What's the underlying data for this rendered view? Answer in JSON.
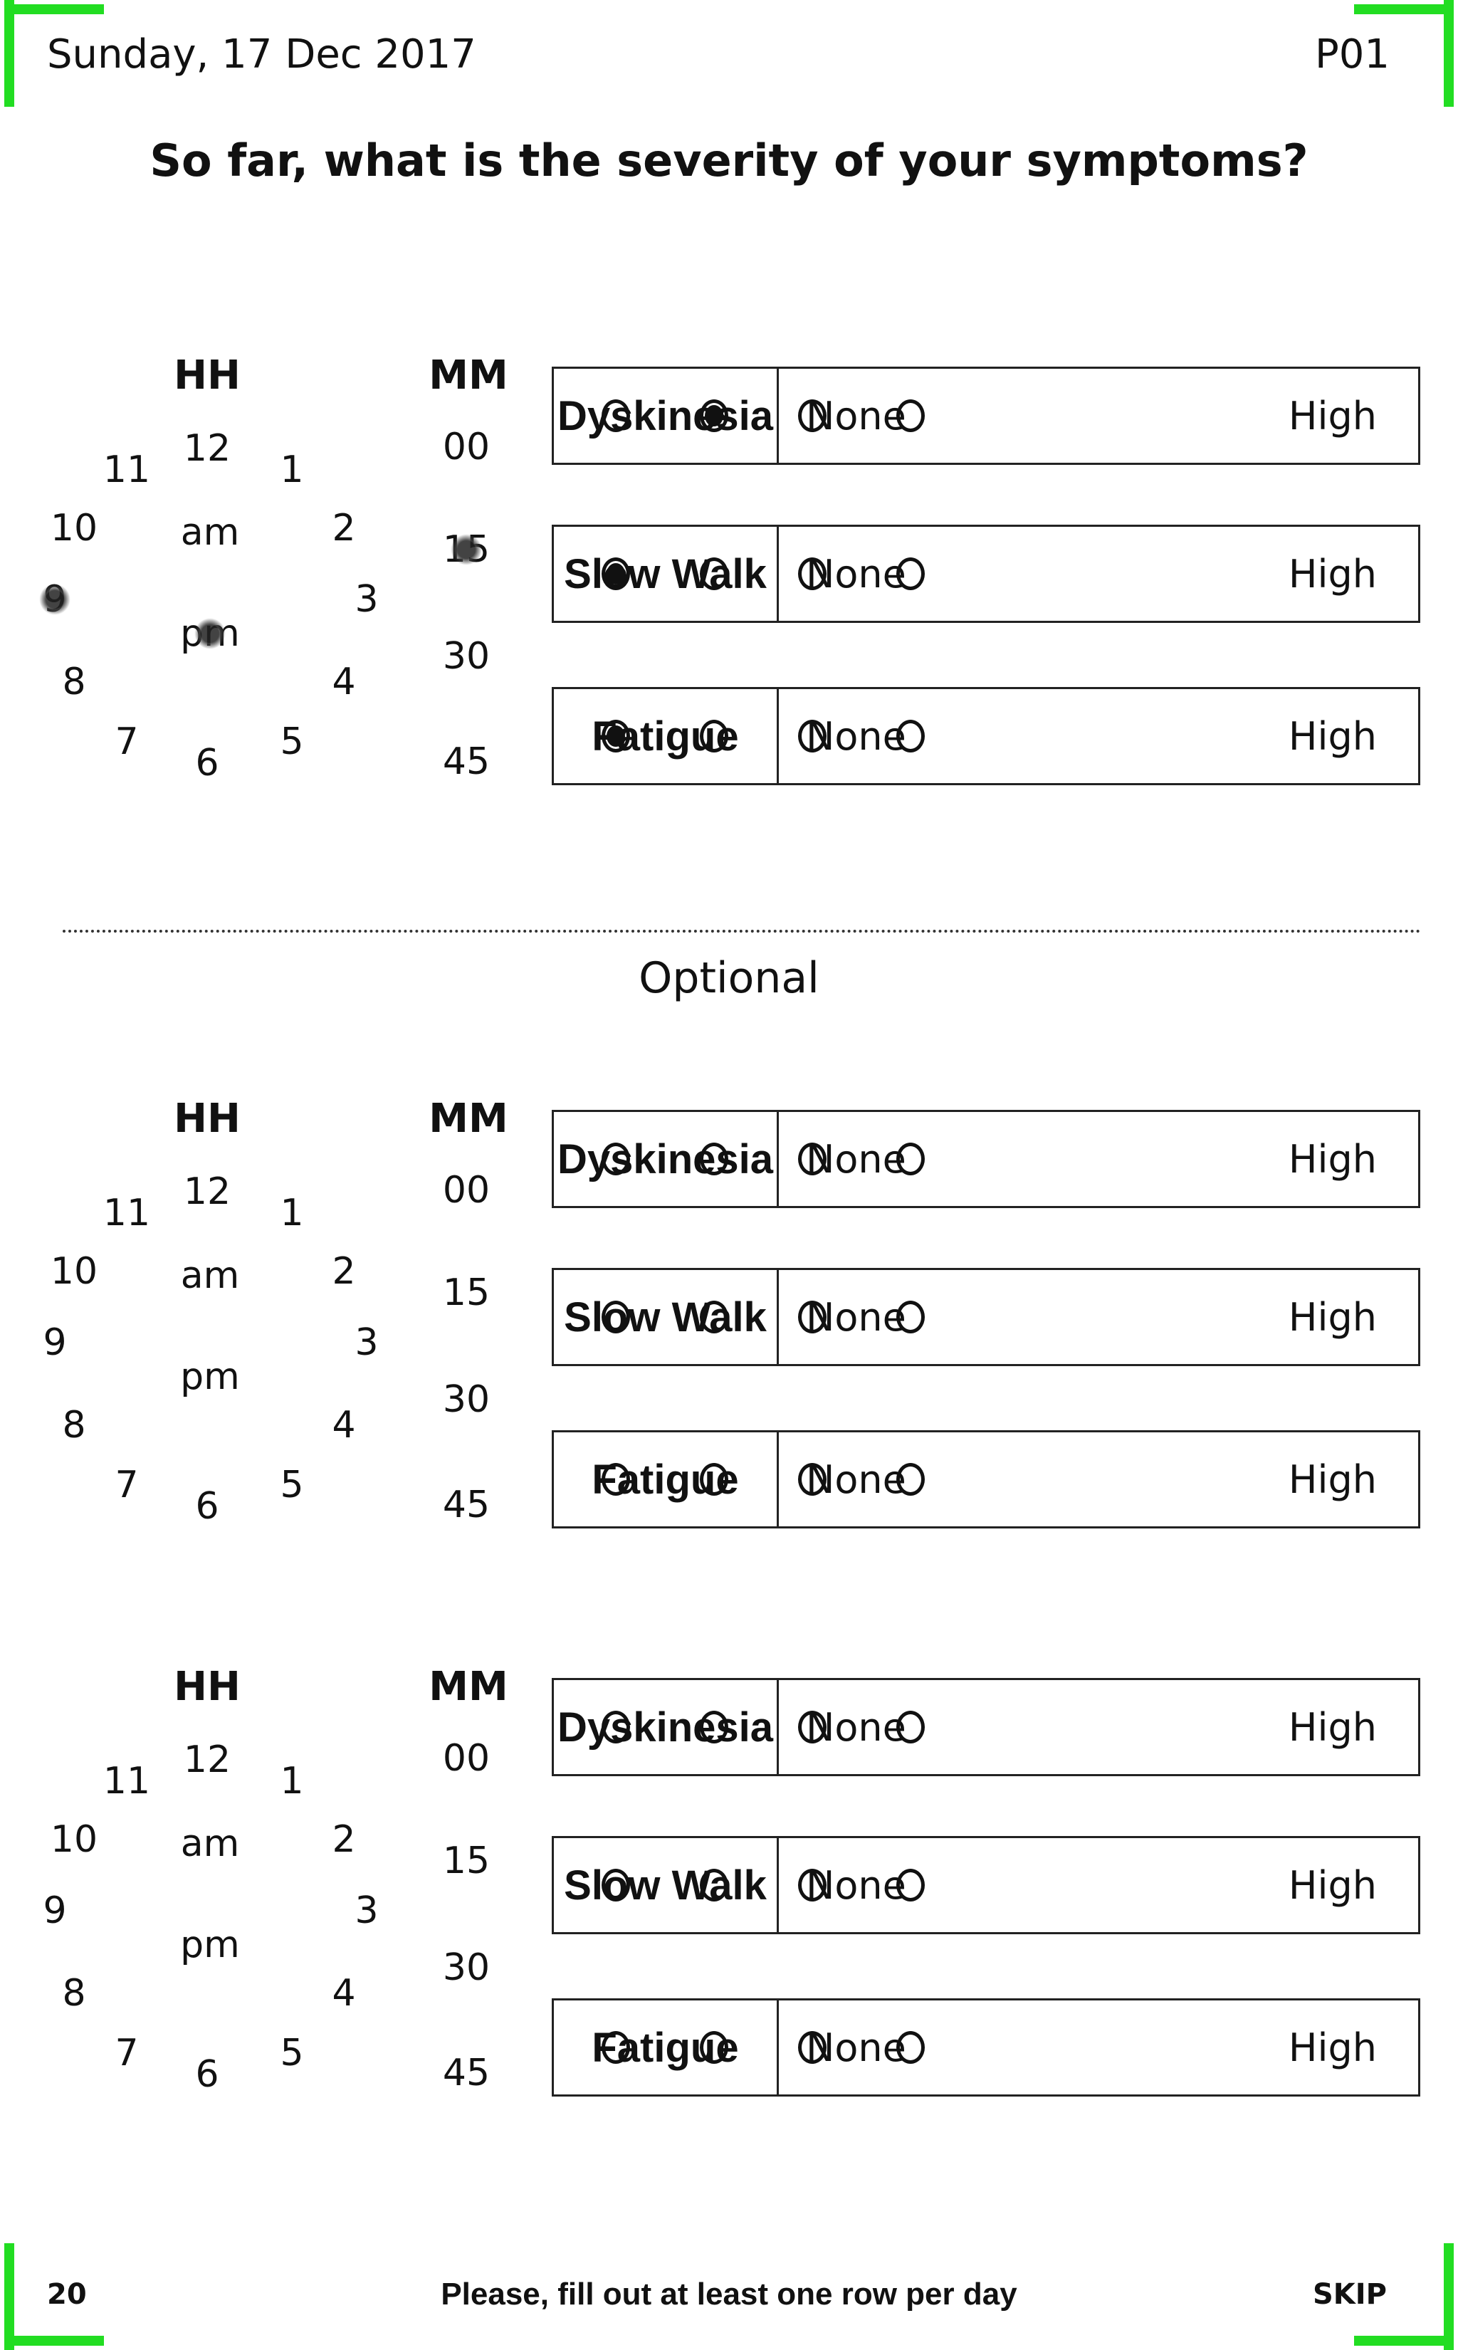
{
  "header": {
    "date": "Sunday, 17 Dec 2017",
    "code": "P01"
  },
  "headline": "So far, what is the severity of your symptoms?",
  "optional_label": "Optional",
  "clock": {
    "hh_header": "HH",
    "mm_header": "MM",
    "hours": [
      "12",
      "1",
      "2",
      "3",
      "4",
      "5",
      "6",
      "7",
      "8",
      "9",
      "10",
      "11"
    ],
    "ampm": [
      "am",
      "pm"
    ],
    "minutes": [
      "00",
      "15",
      "30",
      "45"
    ]
  },
  "scale": {
    "low": "None",
    "high": "High",
    "options": 4
  },
  "symptoms": [
    "Dyskinesia",
    "Slow Walk",
    "Fatigue"
  ],
  "entries": [
    {
      "selected_hour": "9",
      "selected_ampm": "pm",
      "selected_minute": "15",
      "ratings": {
        "Dyskinesia": 2,
        "Slow Walk": 1,
        "Fatigue": 1
      }
    },
    {
      "selected_hour": null,
      "selected_ampm": null,
      "selected_minute": null,
      "ratings": {}
    },
    {
      "selected_hour": null,
      "selected_ampm": null,
      "selected_minute": null,
      "ratings": {}
    }
  ],
  "footer": {
    "page": "20",
    "note": "Please, fill out at least one row per day",
    "skip": "SKIP"
  }
}
